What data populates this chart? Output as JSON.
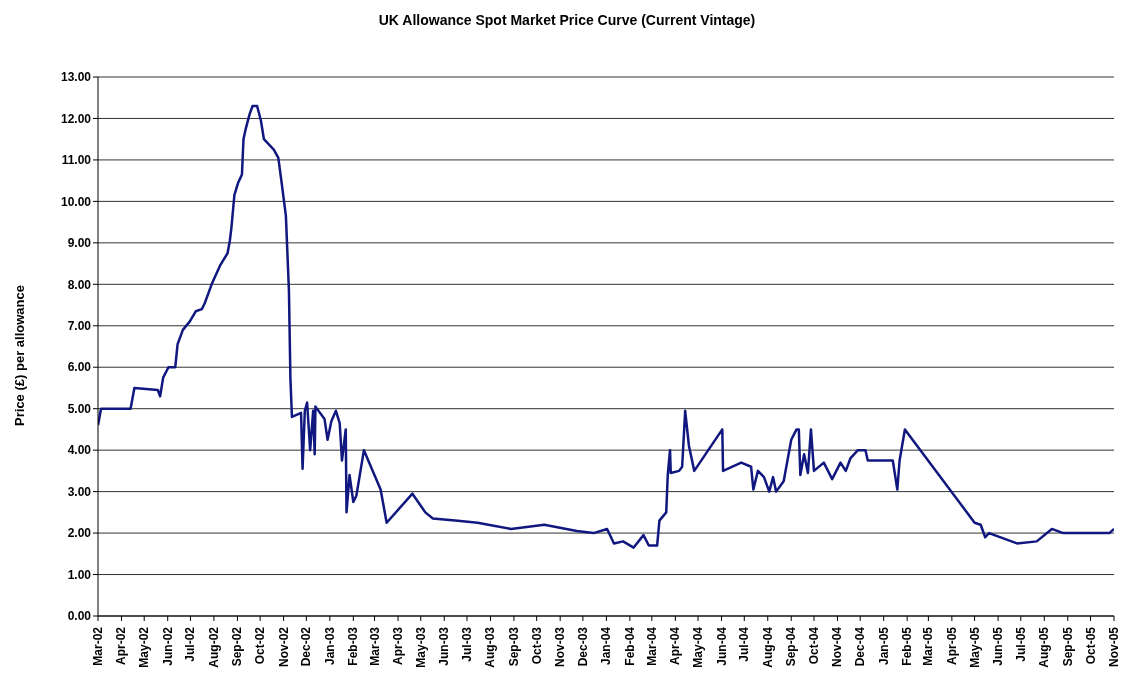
{
  "chart_data": {
    "type": "line",
    "title": "UK Allowance Spot Market Price Curve (Current Vintage)",
    "ylabel": "Price (£) per allowance",
    "x": [
      "2002-03-01",
      "2002-03-05",
      "2002-04-13",
      "2002-04-18",
      "2002-05-19",
      "2002-05-22",
      "2002-05-26",
      "2002-06-02",
      "2002-06-11",
      "2002-06-14",
      "2002-06-21",
      "2002-06-30",
      "2002-07-08",
      "2002-07-16",
      "2002-07-20",
      "2002-07-29",
      "2002-08-09",
      "2002-08-19",
      "2002-08-22",
      "2002-08-24",
      "2002-08-28",
      "2002-09-02",
      "2002-09-07",
      "2002-09-09",
      "2002-09-12",
      "2002-09-17",
      "2002-09-21",
      "2002-09-27",
      "2002-10-02",
      "2002-10-06",
      "2002-10-19",
      "2002-10-25",
      "2002-10-29",
      "2002-11-04",
      "2002-11-08",
      "2002-11-10",
      "2002-11-12",
      "2002-11-24",
      "2002-11-26",
      "2002-11-29",
      "2002-12-02",
      "2002-12-06",
      "2002-12-10",
      "2002-12-12",
      "2002-12-13",
      "2002-12-25",
      "2002-12-29",
      "2003-01-03",
      "2003-01-09",
      "2003-01-14",
      "2003-01-17",
      "2003-01-22",
      "2003-01-23",
      "2003-01-27",
      "2003-02-01",
      "2003-02-05",
      "2003-02-15",
      "2003-03-09",
      "2003-03-17",
      "2003-04-20",
      "2003-05-07",
      "2003-05-17",
      "2003-06-19",
      "2003-07-15",
      "2003-08-28",
      "2003-10-11",
      "2003-11-23",
      "2003-12-15",
      "2004-01-02",
      "2004-01-11",
      "2004-01-23",
      "2004-02-06",
      "2004-02-19",
      "2004-02-26",
      "2004-03-08",
      "2004-03-11",
      "2004-03-20",
      "2004-03-22",
      "2004-03-25",
      "2004-03-26",
      "2004-04-06",
      "2004-04-10",
      "2004-04-14",
      "2004-04-19",
      "2004-04-26",
      "2004-06-02",
      "2004-06-03",
      "2004-06-27",
      "2004-07-10",
      "2004-07-13",
      "2004-07-19",
      "2004-07-27",
      "2004-08-03",
      "2004-08-08",
      "2004-08-12",
      "2004-08-22",
      "2004-09-01",
      "2004-09-08",
      "2004-09-11",
      "2004-09-13",
      "2004-09-18",
      "2004-09-23",
      "2004-09-27",
      "2004-10-01",
      "2004-10-14",
      "2004-10-25",
      "2004-11-05",
      "2004-11-12",
      "2004-11-18",
      "2004-11-28",
      "2004-12-08",
      "2004-12-11",
      "2005-01-13",
      "2005-01-19",
      "2005-01-22",
      "2005-01-29",
      "2005-05-01",
      "2005-05-09",
      "2005-05-15",
      "2005-05-20",
      "2005-06-26",
      "2005-07-22",
      "2005-08-11",
      "2005-08-26",
      "2005-10-26",
      "2005-11-01"
    ],
    "series": [
      {
        "color": "#10187f",
        "values": [
          4.6,
          5.0,
          5.0,
          5.5,
          5.45,
          5.3,
          5.75,
          6.0,
          6.0,
          6.55,
          6.9,
          7.1,
          7.35,
          7.4,
          7.55,
          8.0,
          8.45,
          8.75,
          9.05,
          9.35,
          10.15,
          10.45,
          10.65,
          11.5,
          11.75,
          12.1,
          12.3,
          12.3,
          11.95,
          11.5,
          11.25,
          11.05,
          10.5,
          9.65,
          7.85,
          5.7,
          4.8,
          4.9,
          3.55,
          4.95,
          5.15,
          4.0,
          4.95,
          3.9,
          5.05,
          4.75,
          4.25,
          4.7,
          4.95,
          4.65,
          3.75,
          4.5,
          2.5,
          3.4,
          2.75,
          2.9,
          4.0,
          3.05,
          2.25,
          2.95,
          2.5,
          2.35,
          2.3,
          2.25,
          2.1,
          2.2,
          2.05,
          2.0,
          2.1,
          1.75,
          1.8,
          1.65,
          1.95,
          1.7,
          1.7,
          2.3,
          2.5,
          3.4,
          4.0,
          3.45,
          3.5,
          3.6,
          4.95,
          4.1,
          3.5,
          4.5,
          3.5,
          3.7,
          3.6,
          3.05,
          3.5,
          3.35,
          3.0,
          3.35,
          3.0,
          3.25,
          4.25,
          4.5,
          4.5,
          3.4,
          3.9,
          3.45,
          4.5,
          3.5,
          3.7,
          3.3,
          3.7,
          3.5,
          3.8,
          4.0,
          4.0,
          3.75,
          3.75,
          3.05,
          3.75,
          4.5,
          2.25,
          2.2,
          1.9,
          2.0,
          1.75,
          1.8,
          2.1,
          2.0,
          2.0,
          2.1
        ]
      }
    ],
    "xlim": [
      "2002-03-01",
      "2005-11-01"
    ],
    "xticks": [
      {
        "value": "2002-03-01",
        "label": "Mar-02"
      },
      {
        "value": "2002-04-01",
        "label": "Apr-02"
      },
      {
        "value": "2002-05-01",
        "label": "May-02"
      },
      {
        "value": "2002-06-01",
        "label": "Jun-02"
      },
      {
        "value": "2002-07-01",
        "label": "Jul-02"
      },
      {
        "value": "2002-08-01",
        "label": "Aug-02"
      },
      {
        "value": "2002-09-01",
        "label": "Sep-02"
      },
      {
        "value": "2002-10-01",
        "label": "Oct-02"
      },
      {
        "value": "2002-11-01",
        "label": "Nov-02"
      },
      {
        "value": "2002-12-01",
        "label": "Dec-02"
      },
      {
        "value": "2003-01-01",
        "label": "Jan-03"
      },
      {
        "value": "2003-02-01",
        "label": "Feb-03"
      },
      {
        "value": "2003-03-01",
        "label": "Mar-03"
      },
      {
        "value": "2003-04-01",
        "label": "Apr-03"
      },
      {
        "value": "2003-05-01",
        "label": "May-03"
      },
      {
        "value": "2003-06-01",
        "label": "Jun-03"
      },
      {
        "value": "2003-07-01",
        "label": "Jul-03"
      },
      {
        "value": "2003-08-01",
        "label": "Aug-03"
      },
      {
        "value": "2003-09-01",
        "label": "Sep-03"
      },
      {
        "value": "2003-10-01",
        "label": "Oct-03"
      },
      {
        "value": "2003-11-01",
        "label": "Nov-03"
      },
      {
        "value": "2003-12-01",
        "label": "Dec-03"
      },
      {
        "value": "2004-01-01",
        "label": "Jan-04"
      },
      {
        "value": "2004-02-01",
        "label": "Feb-04"
      },
      {
        "value": "2004-03-01",
        "label": "Mar-04"
      },
      {
        "value": "2004-04-01",
        "label": "Apr-04"
      },
      {
        "value": "2004-05-01",
        "label": "May-04"
      },
      {
        "value": "2004-06-01",
        "label": "Jun-04"
      },
      {
        "value": "2004-07-01",
        "label": "Jul-04"
      },
      {
        "value": "2004-08-01",
        "label": "Aug-04"
      },
      {
        "value": "2004-09-01",
        "label": "Sep-04"
      },
      {
        "value": "2004-10-01",
        "label": "Oct-04"
      },
      {
        "value": "2004-11-01",
        "label": "Nov-04"
      },
      {
        "value": "2004-12-01",
        "label": "Dec-04"
      },
      {
        "value": "2005-01-01",
        "label": "Jan-05"
      },
      {
        "value": "2005-02-01",
        "label": "Feb-05"
      },
      {
        "value": "2005-03-01",
        "label": "Mar-05"
      },
      {
        "value": "2005-04-01",
        "label": "Apr-05"
      },
      {
        "value": "2005-05-01",
        "label": "May-05"
      },
      {
        "value": "2005-06-01",
        "label": "Jun-05"
      },
      {
        "value": "2005-07-01",
        "label": "Jul-05"
      },
      {
        "value": "2005-08-01",
        "label": "Aug-05"
      },
      {
        "value": "2005-09-01",
        "label": "Sep-05"
      },
      {
        "value": "2005-10-01",
        "label": "Oct-05"
      },
      {
        "value": "2005-11-01",
        "label": "Nov-05"
      }
    ],
    "ylim": [
      0,
      13
    ],
    "yticks": [
      {
        "value": 0,
        "label": "0.00"
      },
      {
        "value": 1,
        "label": "1.00"
      },
      {
        "value": 2,
        "label": "2.00"
      },
      {
        "value": 3,
        "label": "3.00"
      },
      {
        "value": 4,
        "label": "4.00"
      },
      {
        "value": 5,
        "label": "5.00"
      },
      {
        "value": 6,
        "label": "6.00"
      },
      {
        "value": 7,
        "label": "7.00"
      },
      {
        "value": 8,
        "label": "8.00"
      },
      {
        "value": 9,
        "label": "9.00"
      },
      {
        "value": 10,
        "label": "10.00"
      },
      {
        "value": 11,
        "label": "11.00"
      },
      {
        "value": 12,
        "label": "12.00"
      },
      {
        "value": 13,
        "label": "13.00"
      }
    ],
    "grid": "y",
    "legend": false,
    "marker": "none",
    "line_style": "solid"
  }
}
